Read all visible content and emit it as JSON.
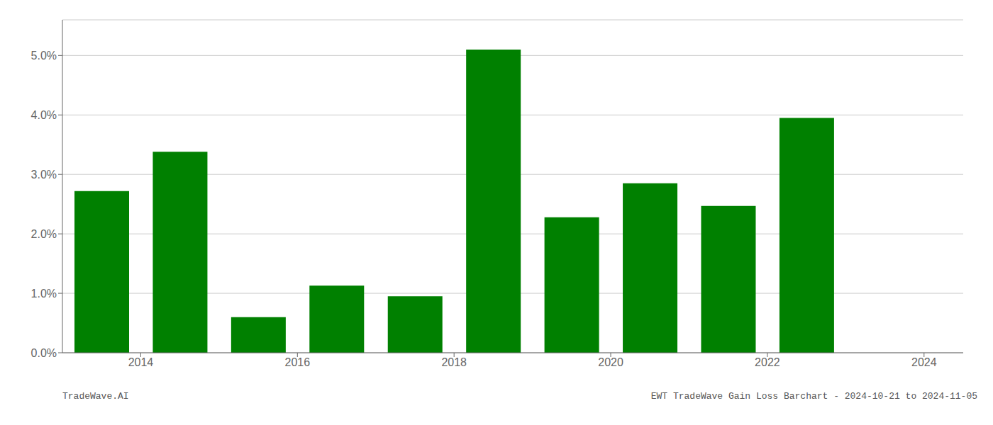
{
  "chart_data": {
    "type": "bar",
    "title": "EWT TradeWave Gain Loss Barchart - 2024-10-21 to 2024-11-05",
    "annotations": [
      "TradeWave.AI"
    ],
    "x": [
      2013.5,
      2014.5,
      2015.5,
      2016.5,
      2017.5,
      2018.5,
      2019.5,
      2020.5,
      2021.5,
      2022.5
    ],
    "values": [
      2.72,
      3.38,
      0.6,
      1.13,
      0.95,
      5.1,
      2.28,
      2.85,
      2.47,
      3.95
    ],
    "color": "#008000",
    "xlim": [
      2013.0,
      2024.5
    ],
    "xticks": [
      2014,
      2016,
      2018,
      2020,
      2022,
      2024
    ],
    "ylim": [
      0,
      5.6
    ],
    "yticks": [
      {
        "value": 0,
        "label": "0.0%"
      },
      {
        "value": 1,
        "label": "1.0%"
      },
      {
        "value": 2,
        "label": "2.0%"
      },
      {
        "value": 3,
        "label": "3.0%"
      },
      {
        "value": 4,
        "label": "4.0%"
      },
      {
        "value": 5,
        "label": "5.0%"
      }
    ],
    "grid": true
  }
}
